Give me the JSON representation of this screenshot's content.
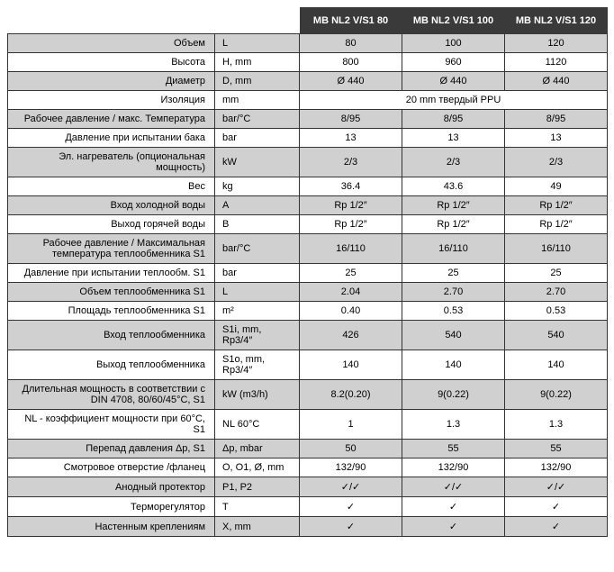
{
  "table": {
    "header_blank_cols": 2,
    "models": [
      "MB NL2  V/S1 80",
      "MB NL2 V/S1 100",
      "MB NL2 V/S1 120"
    ],
    "rows": [
      {
        "shaded": true,
        "label": "Объем",
        "unit": "L",
        "values": [
          "80",
          "100",
          "120"
        ]
      },
      {
        "shaded": false,
        "label": "Высота",
        "unit": "H, mm",
        "values": [
          "800",
          "960",
          "1120"
        ]
      },
      {
        "shaded": true,
        "label": "Диаметр",
        "unit": "D, mm",
        "values": [
          "Ø 440",
          "Ø 440",
          "Ø 440"
        ]
      },
      {
        "shaded": false,
        "label": "Изоляция",
        "unit": "mm",
        "span": "20 mm твердый PPU"
      },
      {
        "shaded": true,
        "label": "Рабочее давление / макс. Температура",
        "unit": "bar/°C",
        "values": [
          "8/95",
          "8/95",
          "8/95"
        ]
      },
      {
        "shaded": false,
        "label": "Давление при испытании бака",
        "unit": "bar",
        "values": [
          "13",
          "13",
          "13"
        ]
      },
      {
        "shaded": true,
        "label": "Эл. нагреватель (опциональная мощность)",
        "unit": "kW",
        "values": [
          "2/3",
          "2/3",
          "2/3"
        ]
      },
      {
        "shaded": false,
        "label": "Вес",
        "unit": "kg",
        "values": [
          "36.4",
          "43.6",
          "49"
        ]
      },
      {
        "shaded": true,
        "label": "Вход холодной воды",
        "unit": "A",
        "values": [
          "Rp 1/2″",
          "Rp 1/2″",
          "Rp 1/2″"
        ]
      },
      {
        "shaded": false,
        "label": "Выход горячей воды",
        "unit": "B",
        "values": [
          "Rp 1/2″",
          "Rp 1/2″",
          "Rp 1/2″"
        ]
      },
      {
        "shaded": true,
        "label": "Рабочее давление / Максимальная температура теплообменника S1",
        "unit": "bar/°C",
        "values": [
          "16/110",
          "16/110",
          "16/110"
        ]
      },
      {
        "shaded": false,
        "label": "Давление при испытании теплообм. S1",
        "unit": "bar",
        "values": [
          "25",
          "25",
          "25"
        ]
      },
      {
        "shaded": true,
        "label": "Объем теплообменника S1",
        "unit": "L",
        "values": [
          "2.04",
          "2.70",
          "2.70"
        ]
      },
      {
        "shaded": false,
        "label": "Площадь теплообменника S1",
        "unit": "m²",
        "values": [
          "0.40",
          "0.53",
          "0.53"
        ]
      },
      {
        "shaded": true,
        "label": "Вход теплообменника",
        "unit": "S1i, mm, Rp3/4″",
        "values": [
          "426",
          "540",
          "540"
        ]
      },
      {
        "shaded": false,
        "label": "Выход теплообменника",
        "unit": "S1o, mm, Rp3/4″",
        "values": [
          "140",
          "140",
          "140"
        ]
      },
      {
        "shaded": true,
        "label": "Длительная мощность в соответствии с DIN 4708, 80/60/45°C, S1",
        "unit": "kW (m3/h)",
        "values": [
          "8.2(0.20)",
          "9(0.22)",
          "9(0.22)"
        ]
      },
      {
        "shaded": false,
        "label": "NL - коэффициент мощности при 60°C, S1",
        "unit": "NL 60°C",
        "values": [
          "1",
          "1.3",
          "1.3"
        ]
      },
      {
        "shaded": true,
        "label": "Перепад давления Δp, S1",
        "unit": "Δp, mbar",
        "values": [
          "50",
          "55",
          "55"
        ]
      },
      {
        "shaded": false,
        "label": "Смотровое отверстие /фланец",
        "unit": "O, O1, Ø, mm",
        "values": [
          "132/90",
          "132/90",
          "132/90"
        ]
      },
      {
        "shaded": true,
        "label": "Анодный протектор",
        "unit": "P1, P2",
        "values": [
          "✓/✓",
          "✓/✓",
          "✓/✓"
        ]
      },
      {
        "shaded": false,
        "label": "Терморегулятор",
        "unit": "T",
        "values": [
          "✓",
          "✓",
          "✓"
        ]
      },
      {
        "shaded": true,
        "label": "Настенным креплениям",
        "unit": "X, mm",
        "values": [
          "✓",
          "✓",
          "✓"
        ]
      }
    ]
  }
}
